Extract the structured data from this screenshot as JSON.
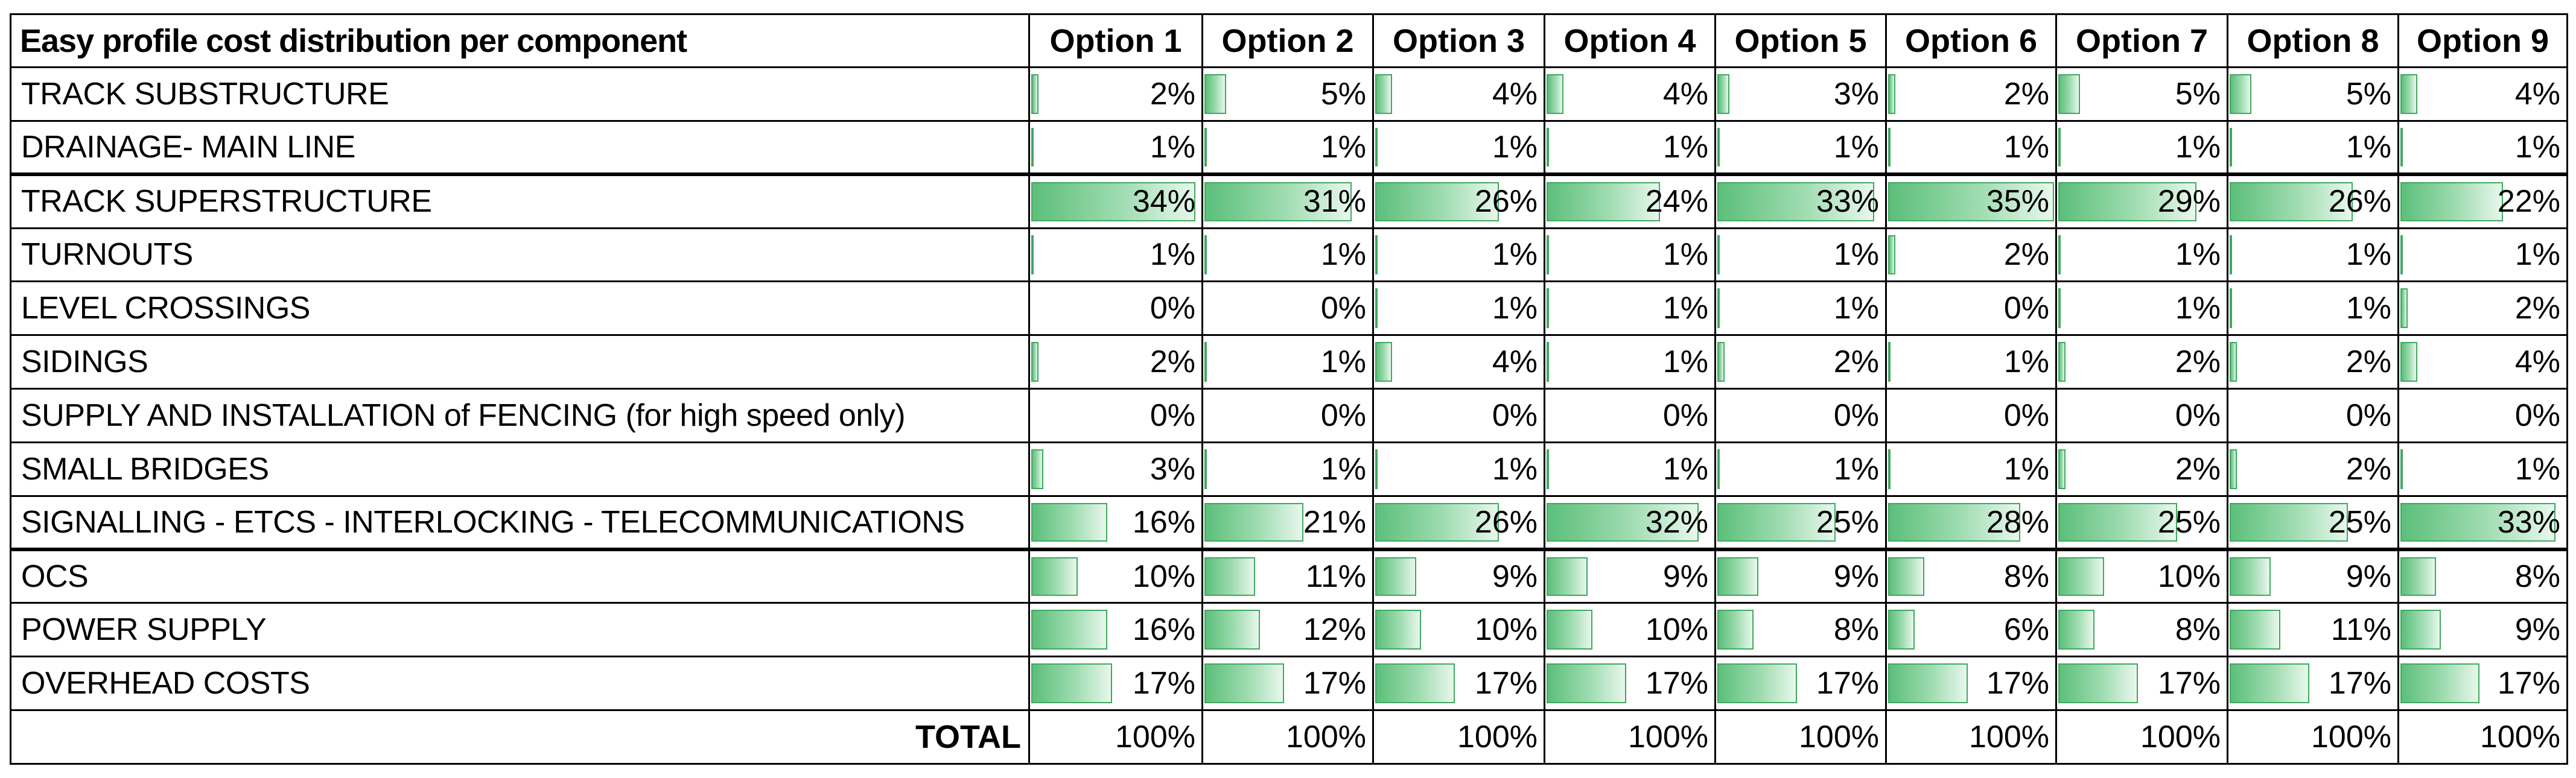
{
  "table": {
    "title": "Easy profile cost distribution per component",
    "options": [
      "Option 1",
      "Option 2",
      "Option 3",
      "Option 4",
      "Option 5",
      "Option 6",
      "Option 7",
      "Option 8",
      "Option 9"
    ],
    "rows": [
      {
        "component": "TRACK SUBSTRUCTURE",
        "values": [
          "2%",
          "5%",
          "4%",
          "4%",
          "3%",
          "2%",
          "5%",
          "5%",
          "4%"
        ],
        "fractions": [
          0.02,
          0.05,
          0.04,
          0.04,
          0.03,
          0.02,
          0.05,
          0.05,
          0.04
        ]
      },
      {
        "component": "DRAINAGE- MAIN LINE",
        "values": [
          "1%",
          "1%",
          "1%",
          "1%",
          "1%",
          "1%",
          "1%",
          "1%",
          "1%"
        ],
        "fractions": [
          0.01,
          0.01,
          0.01,
          0.01,
          0.01,
          0.01,
          0.01,
          0.01,
          0.01
        ]
      },
      {
        "component": "TRACK SUPERSTRUCTURE",
        "values": [
          "34%",
          "31%",
          "26%",
          "24%",
          "33%",
          "35%",
          "29%",
          "26%",
          "22%"
        ],
        "fractions": [
          0.34,
          0.31,
          0.26,
          0.24,
          0.33,
          0.35,
          0.29,
          0.26,
          0.22
        ]
      },
      {
        "component": "TURNOUTS",
        "values": [
          "1%",
          "1%",
          "1%",
          "1%",
          "1%",
          "2%",
          "1%",
          "1%",
          "1%"
        ],
        "fractions": [
          0.01,
          0.01,
          0.01,
          0.01,
          0.01,
          0.02,
          0.01,
          0.01,
          0.01
        ]
      },
      {
        "component": "LEVEL CROSSINGS",
        "values": [
          "0%",
          "0%",
          "1%",
          "1%",
          "1%",
          "0%",
          "1%",
          "1%",
          "2%"
        ],
        "fractions": [
          0.0,
          0.0,
          0.01,
          0.01,
          0.01,
          0.0,
          0.01,
          0.01,
          0.02
        ]
      },
      {
        "component": "SIDINGS",
        "values": [
          "2%",
          "1%",
          "4%",
          "1%",
          "2%",
          "1%",
          "2%",
          "2%",
          "4%"
        ],
        "fractions": [
          0.02,
          0.01,
          0.04,
          0.01,
          0.02,
          0.01,
          0.02,
          0.02,
          0.04
        ]
      },
      {
        "component": "SUPPLY AND INSTALLATION of FENCING (for high speed only)",
        "values": [
          "0%",
          "0%",
          "0%",
          "0%",
          "0%",
          "0%",
          "0%",
          "0%",
          "0%"
        ],
        "fractions": [
          0,
          0,
          0,
          0,
          0,
          0,
          0,
          0,
          0
        ]
      },
      {
        "component": "SMALL BRIDGES",
        "values": [
          "3%",
          "1%",
          "1%",
          "1%",
          "1%",
          "1%",
          "2%",
          "2%",
          "1%"
        ],
        "fractions": [
          0.03,
          0.01,
          0.01,
          0.01,
          0.01,
          0.01,
          0.02,
          0.02,
          0.01
        ]
      },
      {
        "component": "SIGNALLING - ETCS - INTERLOCKING - TELECOMMUNICATIONS",
        "values": [
          "16%",
          "21%",
          "26%",
          "32%",
          "25%",
          "28%",
          "25%",
          "25%",
          "33%"
        ],
        "fractions": [
          0.16,
          0.21,
          0.26,
          0.32,
          0.25,
          0.28,
          0.25,
          0.25,
          0.33
        ]
      },
      {
        "component": "OCS",
        "values": [
          "10%",
          "11%",
          "9%",
          "9%",
          "9%",
          "8%",
          "10%",
          "9%",
          "8%"
        ],
        "fractions": [
          0.1,
          0.11,
          0.09,
          0.09,
          0.09,
          0.08,
          0.1,
          0.09,
          0.08
        ]
      },
      {
        "component": "POWER SUPPLY",
        "values": [
          "16%",
          "12%",
          "10%",
          "10%",
          "8%",
          "6%",
          "8%",
          "11%",
          "9%"
        ],
        "fractions": [
          0.16,
          0.12,
          0.1,
          0.1,
          0.08,
          0.06,
          0.08,
          0.11,
          0.09
        ]
      },
      {
        "component": "OVERHEAD COSTS",
        "values": [
          "17%",
          "17%",
          "17%",
          "17%",
          "17%",
          "17%",
          "17%",
          "17%",
          "17%"
        ],
        "fractions": [
          0.17,
          0.17,
          0.17,
          0.17,
          0.17,
          0.17,
          0.17,
          0.17,
          0.17
        ]
      }
    ],
    "total": {
      "label": "TOTAL",
      "values": [
        "100%",
        "100%",
        "100%",
        "100%",
        "100%",
        "100%",
        "100%",
        "100%",
        "100%"
      ]
    },
    "colors": {
      "bar_fill": "#5cbf7a",
      "bar_border": "#3fa85f"
    }
  }
}
